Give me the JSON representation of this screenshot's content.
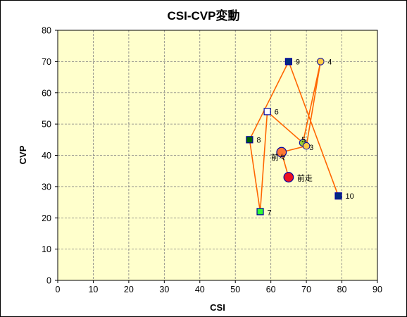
{
  "chart_data": {
    "type": "scatter",
    "title": "CSI-CVP変動",
    "xlabel": "CSI",
    "ylabel": "CVP",
    "xlim": [
      0,
      90
    ],
    "ylim": [
      0,
      80
    ],
    "xticks": [
      0,
      10,
      20,
      30,
      40,
      50,
      60,
      70,
      80,
      90
    ],
    "yticks": [
      0,
      10,
      20,
      30,
      40,
      50,
      60,
      70,
      80
    ],
    "grid": true,
    "legend": "none",
    "colors": {
      "plot_background": "#ffffcc",
      "grid": "#808080",
      "line": "#ff6600",
      "square_fill_dark": "#002b80",
      "square_fill_green_dark": "#006600",
      "square_fill_green": "#33ff33",
      "square_fill_white": "#ffffff",
      "square_stroke": "#0000a0",
      "circle_yellow": "#ffcc44",
      "circle_green": "#99cc33",
      "circle_orange": "#ff7733",
      "circle_red": "#ee1122",
      "circle_stroke": "#0000a0"
    },
    "points": [
      {
        "label": "10",
        "x": 79,
        "y": 27,
        "marker": "square",
        "fill": "#002b80"
      },
      {
        "label": "9",
        "x": 65,
        "y": 70,
        "marker": "square",
        "fill": "#002b80"
      },
      {
        "label": "8",
        "x": 54,
        "y": 45,
        "marker": "square",
        "fill": "#006600"
      },
      {
        "label": "7",
        "x": 57,
        "y": 22,
        "marker": "square",
        "fill": "#33ff33"
      },
      {
        "label": "6",
        "x": 59,
        "y": 54,
        "marker": "square",
        "fill": "#ffffff"
      },
      {
        "label": "5",
        "x": 69,
        "y": 44,
        "marker": "circle",
        "fill": "#99cc33"
      },
      {
        "label": "4",
        "x": 74,
        "y": 70,
        "marker": "circle",
        "fill": "#ffcc44"
      },
      {
        "label": "3",
        "x": 70,
        "y": 43,
        "marker": "circle",
        "fill": "#ffcc44"
      },
      {
        "label": "前々",
        "x": 63,
        "y": 41,
        "marker": "circle-large",
        "fill": "#ff7733"
      },
      {
        "label": "前走",
        "x": 65,
        "y": 33,
        "marker": "circle-large",
        "fill": "#ee1122"
      }
    ]
  }
}
